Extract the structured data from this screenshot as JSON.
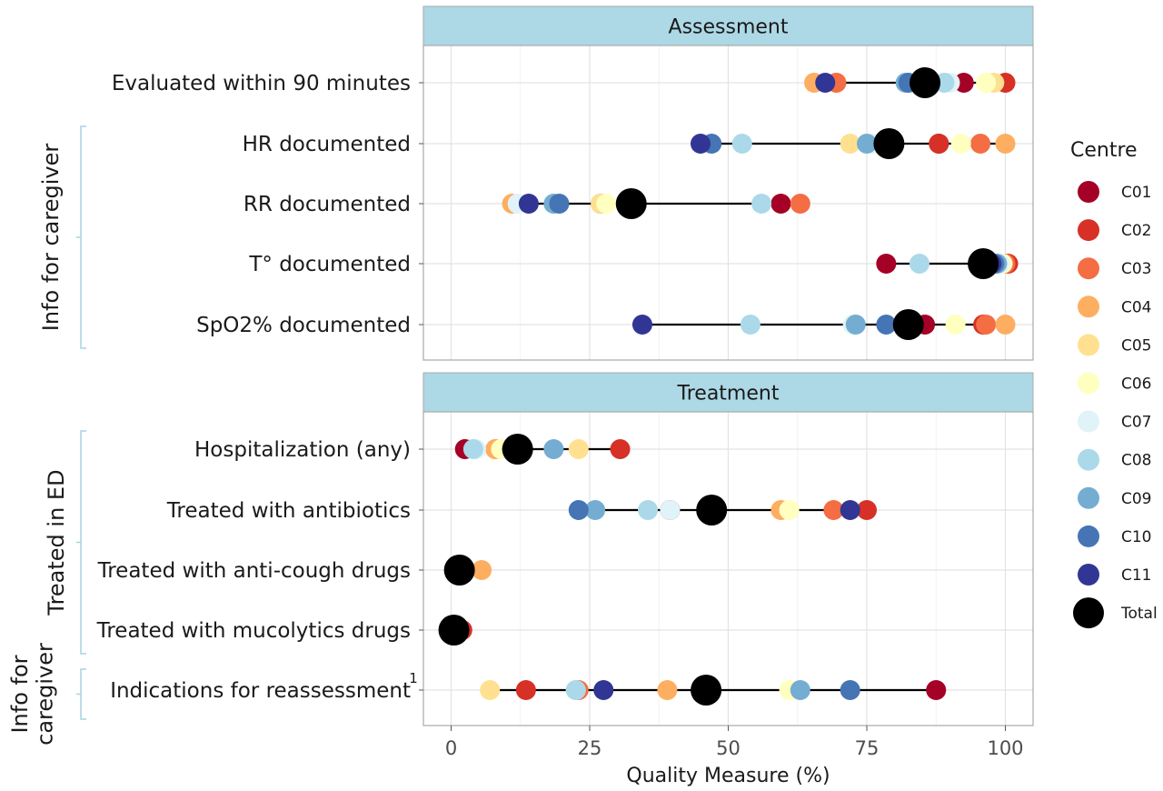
{
  "chart_data": {
    "type": "scatter",
    "xlabel": "Quality Measure (%)",
    "xlim": [
      -5,
      105
    ],
    "xticks": [
      0,
      25,
      50,
      75,
      100
    ],
    "grid": true,
    "legend": {
      "title": "Centre",
      "position": "right",
      "entries": [
        {
          "name": "C01",
          "color": "#a50026"
        },
        {
          "name": "C02",
          "color": "#d73027"
        },
        {
          "name": "C03",
          "color": "#f46d43"
        },
        {
          "name": "C04",
          "color": "#fdae61"
        },
        {
          "name": "C05",
          "color": "#fee090"
        },
        {
          "name": "C06",
          "color": "#ffffbf"
        },
        {
          "name": "C07",
          "color": "#e0f3f8"
        },
        {
          "name": "C08",
          "color": "#abd9e9"
        },
        {
          "name": "C09",
          "color": "#74add1"
        },
        {
          "name": "C10",
          "color": "#4575b4"
        },
        {
          "name": "C11",
          "color": "#313695"
        },
        {
          "name": "Total",
          "color": "#000000"
        }
      ]
    },
    "panels": [
      {
        "title": "Assessment",
        "rows": [
          {
            "label": "Evaluated within 90 minutes",
            "values": {
              "C01": 92.5,
              "C02": 100,
              "C03": 69.5,
              "C04": 65.5,
              "C05": 98,
              "C06": 96.5,
              "C07": 90,
              "C08": 89,
              "C09": 82,
              "C10": 82.5,
              "C11": 67.5,
              "Total": 85.5
            }
          },
          {
            "label": "HR documented",
            "values": {
              "C01": 88,
              "C02": 88,
              "C03": 95.5,
              "C04": 100,
              "C05": 72,
              "C06": 92,
              "C07": 76,
              "C08": 52.5,
              "C09": 75,
              "C10": 47,
              "C11": 45,
              "Total": 79
            }
          },
          {
            "label": "RR documented",
            "values": {
              "C01": 59.5,
              "C02": 27,
              "C03": 63,
              "C04": 11,
              "C05": 27,
              "C06": 28,
              "C07": 12,
              "C08": 56,
              "C09": 18.5,
              "C10": 19.5,
              "C11": 14,
              "Total": 32.5
            }
          },
          {
            "label": "T° documented",
            "values": {
              "C01": 78.5,
              "C02": 100.5,
              "C03": 100,
              "C04": 99.5,
              "C05": 99.5,
              "C06": 99.5,
              "C07": 99,
              "C08": 84.5,
              "C09": 98.5,
              "C10": 98,
              "C11": 97.5,
              "Total": 96
            }
          },
          {
            "label": "SpO2% documented",
            "values": {
              "C01": 85.5,
              "C02": 96,
              "C03": 96.5,
              "C04": 100,
              "C05": 72.5,
              "C06": 91,
              "C07": 72.5,
              "C08": 54,
              "C09": 73,
              "C10": 78.5,
              "C11": 34.5,
              "Total": 82.5
            }
          }
        ]
      },
      {
        "title": "Treatment",
        "rows": [
          {
            "label": "Hospitalization (any)",
            "values": {
              "C01": 2.5,
              "C02": 30.5,
              "C03": 8,
              "C04": 8,
              "C05": 23,
              "C06": 9,
              "C07": 4.5,
              "C08": 4,
              "C09": 18.5,
              "C10": 11,
              "C11": 11.5,
              "Total": 12
            }
          },
          {
            "label": "Treated with antibiotics",
            "values": {
              "C01": 39.5,
              "C02": 75,
              "C03": 69,
              "C04": 59.5,
              "C05": 61,
              "C06": 61,
              "C07": 39.5,
              "C08": 35.5,
              "C09": 26,
              "C10": 23,
              "C11": 72,
              "Total": 47
            }
          },
          {
            "label": "Treated with anti-cough drugs",
            "values": {
              "C01": 1,
              "C02": 1,
              "C03": 1,
              "C04": 5.5,
              "C05": 1,
              "C06": 1,
              "C07": 1,
              "C08": 1,
              "C09": 1,
              "C10": 1,
              "C11": 1,
              "Total": 1.5
            }
          },
          {
            "label": "Treated with mucolytics drugs",
            "values": {
              "C01": 2,
              "C02": 2,
              "C03": 0.5,
              "C04": 0.5,
              "C05": 0.5,
              "C06": 0.5,
              "C07": 0.5,
              "C08": 0.5,
              "C09": 0.5,
              "C10": 0.5,
              "C11": 0.5,
              "Total": 0.5
            }
          },
          {
            "label": "Indications for reassessment",
            "superscript": "1",
            "values": {
              "C01": 87.5,
              "C02": 13.5,
              "C03": 23,
              "C04": 39,
              "C05": 7,
              "C06": 61,
              "C07": 22.5,
              "C08": 22.5,
              "C09": 63,
              "C10": 72,
              "C11": 27.5,
              "Total": 46
            }
          }
        ]
      }
    ],
    "groups": [
      {
        "label": "Info for caregiver"
      },
      {
        "label": "Treated  in ED"
      },
      {
        "label_lines": [
          "Info for",
          "caregiver"
        ]
      }
    ]
  }
}
